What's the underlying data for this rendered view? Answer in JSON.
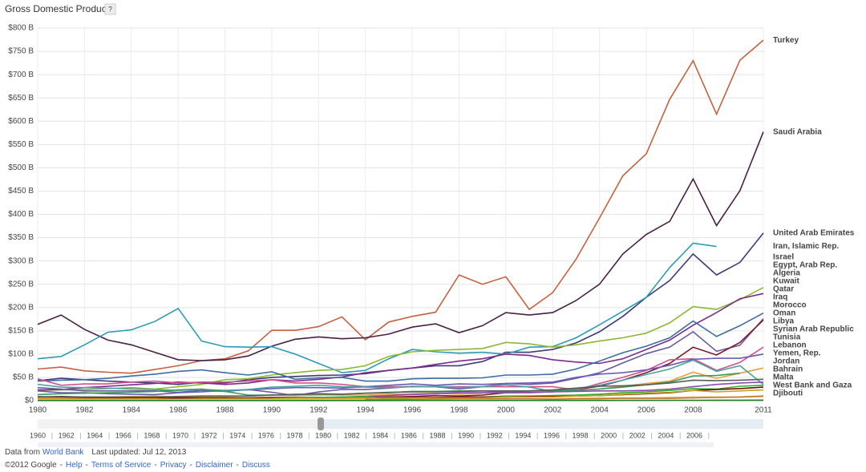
{
  "chart_data": {
    "type": "line",
    "title": "Gross Domestic Product",
    "x": [
      1980,
      1981,
      1982,
      1983,
      1984,
      1985,
      1986,
      1987,
      1988,
      1989,
      1990,
      1991,
      1992,
      1993,
      1994,
      1995,
      1996,
      1997,
      1998,
      1999,
      2000,
      2001,
      2002,
      2003,
      2004,
      2005,
      2006,
      2007,
      2008,
      2009,
      2010,
      2011
    ],
    "xlim": [
      1980,
      2011
    ],
    "xticks": [
      1980,
      1982,
      1984,
      1986,
      1988,
      1990,
      1992,
      1994,
      1996,
      1998,
      2000,
      2002,
      2004,
      2006,
      2008,
      2011
    ],
    "ylim": [
      0,
      800
    ],
    "yticks": [
      {
        "value": 0,
        "label": "$0"
      },
      {
        "value": 50,
        "label": "$50 B"
      },
      {
        "value": 100,
        "label": "$100 B"
      },
      {
        "value": 150,
        "label": "$150 B"
      },
      {
        "value": 200,
        "label": "$200 B"
      },
      {
        "value": 250,
        "label": "$250 B"
      },
      {
        "value": 300,
        "label": "$300 B"
      },
      {
        "value": 350,
        "label": "$350 B"
      },
      {
        "value": 400,
        "label": "$400 B"
      },
      {
        "value": 450,
        "label": "$450 B"
      },
      {
        "value": 500,
        "label": "$500 B"
      },
      {
        "value": 550,
        "label": "$550 B"
      },
      {
        "value": 600,
        "label": "$600 B"
      },
      {
        "value": 650,
        "label": "$650 B"
      },
      {
        "value": 700,
        "label": "$700 B"
      },
      {
        "value": 750,
        "label": "$750 B"
      },
      {
        "value": 800,
        "label": "$800 B"
      }
    ],
    "grid": true,
    "series": [
      {
        "name": "Turkey",
        "color": "#c8603e",
        "values": [
          68,
          72,
          64,
          61,
          59,
          67,
          75,
          86,
          90,
          107,
          151,
          151,
          159,
          180,
          131,
          169,
          181,
          190,
          270,
          250,
          266,
          196,
          232,
          304,
          392,
          483,
          530,
          647,
          730,
          615,
          731,
          774
        ]
      },
      {
        "name": "Saudi Arabia",
        "color": "#4a1f45",
        "values": [
          164,
          184,
          153,
          130,
          120,
          104,
          88,
          86,
          88,
          96,
          117,
          132,
          137,
          133,
          135,
          143,
          158,
          165,
          146,
          161,
          189,
          184,
          189,
          215,
          250,
          315,
          357,
          385,
          476,
          376,
          451,
          577
        ]
      },
      {
        "name": "United Arab Emirates",
        "color": "#3f3a7a",
        "values": [
          43,
          48,
          45,
          42,
          40,
          38,
          35,
          40,
          38,
          45,
          50,
          52,
          54,
          55,
          58,
          65,
          70,
          75,
          75,
          84,
          104,
          104,
          110,
          124,
          148,
          181,
          222,
          258,
          315,
          270,
          297,
          360
        ]
      },
      {
        "name": "Iran, Islamic Rep.",
        "color": "#2b9cb4",
        "values": [
          90,
          95,
          120,
          147,
          152,
          170,
          198,
          128,
          116,
          115,
          116,
          100,
          80,
          60,
          65,
          90,
          110,
          105,
          102,
          104,
          100,
          115,
          116,
          135,
          163,
          192,
          222,
          286,
          338,
          331,
          null,
          null
        ]
      },
      {
        "name": "Israel",
        "color": "#8cb832",
        "values": [
          22,
          23,
          24,
          26,
          28,
          25,
          30,
          35,
          45,
          47,
          55,
          60,
          65,
          67,
          75,
          95,
          105,
          108,
          110,
          112,
          125,
          122,
          115,
          120,
          128,
          135,
          145,
          167,
          202,
          196,
          217,
          243
        ]
      },
      {
        "name": "Egypt, Arab Rep.",
        "color": "#7b2c8c",
        "values": [
          23,
          24,
          28,
          31,
          34,
          37,
          40,
          38,
          35,
          38,
          45,
          42,
          46,
          51,
          60,
          65,
          70,
          78,
          85,
          90,
          100,
          97,
          88,
          83,
          80,
          90,
          110,
          130,
          162,
          189,
          219,
          230
        ]
      },
      {
        "name": "Algeria",
        "color": "#3b6fa3",
        "values": [
          42,
          44,
          45,
          48,
          53,
          57,
          63,
          66,
          60,
          55,
          62,
          46,
          49,
          50,
          42,
          42,
          47,
          48,
          48,
          49,
          55,
          55,
          57,
          68,
          85,
          103,
          117,
          135,
          171,
          138,
          161,
          188
        ]
      },
      {
        "name": "Kuwait",
        "color": "#6a5aa2",
        "values": [
          28,
          25,
          21,
          21,
          21,
          21,
          18,
          22,
          20,
          24,
          18,
          11,
          19,
          24,
          24,
          27,
          31,
          30,
          25,
          30,
          37,
          35,
          38,
          48,
          60,
          81,
          101,
          115,
          148,
          106,
          119,
          176
        ]
      },
      {
        "name": "Qatar",
        "color": "#7b1b30",
        "values": [
          8,
          9,
          8,
          7,
          7,
          6,
          5,
          5,
          6,
          6,
          7,
          7,
          7,
          7,
          7,
          8,
          9,
          11,
          10,
          12,
          17,
          18,
          19,
          24,
          31,
          44,
          60,
          80,
          115,
          98,
          125,
          173
        ]
      },
      {
        "name": "Iraq",
        "color": "#d4508c",
        "values": [
          47,
          33,
          36,
          36,
          40,
          42,
          38,
          40,
          40,
          42,
          45,
          38,
          38,
          35,
          30,
          30,
          30,
          30,
          30,
          30,
          30,
          30,
          30,
          23,
          37,
          50,
          65,
          88,
          90,
          65,
          82,
          115
        ]
      },
      {
        "name": "Morocco",
        "color": "#6a5ab4",
        "values": [
          21,
          17,
          17,
          15,
          14,
          13,
          17,
          19,
          22,
          23,
          26,
          28,
          28,
          27,
          30,
          33,
          36,
          33,
          36,
          35,
          37,
          38,
          40,
          50,
          57,
          60,
          66,
          76,
          89,
          91,
          91,
          100
        ]
      },
      {
        "name": "Oman",
        "color": "#e8a040",
        "values": [
          6,
          7,
          8,
          8,
          9,
          10,
          8,
          8,
          9,
          10,
          12,
          11,
          12,
          12,
          12,
          14,
          15,
          16,
          14,
          16,
          20,
          20,
          20,
          22,
          25,
          31,
          37,
          42,
          61,
          48,
          59,
          70
        ]
      },
      {
        "name": "Libya",
        "color": "#4aa3a3",
        "values": [
          35,
          29,
          28,
          27,
          25,
          24,
          22,
          24,
          22,
          24,
          29,
          31,
          33,
          30,
          29,
          28,
          30,
          31,
          28,
          30,
          34,
          29,
          20,
          26,
          33,
          44,
          56,
          68,
          87,
          63,
          75,
          35
        ]
      },
      {
        "name": "Syrian Arab Republic",
        "color": "#3a9a5a",
        "values": [
          13,
          15,
          16,
          17,
          18,
          20,
          23,
          25,
          20,
          12,
          12,
          14,
          14,
          14,
          16,
          17,
          20,
          20,
          21,
          21,
          19,
          21,
          22,
          22,
          25,
          29,
          34,
          40,
          53,
          54,
          59,
          null
        ]
      },
      {
        "name": "Tunisia",
        "color": "#5a5a5a",
        "values": [
          9,
          8,
          8,
          8,
          8,
          8,
          9,
          10,
          10,
          10,
          12,
          13,
          15,
          14,
          16,
          18,
          19,
          19,
          20,
          21,
          21,
          21,
          23,
          27,
          31,
          32,
          34,
          38,
          44,
          43,
          44,
          46
        ]
      },
      {
        "name": "Lebanon",
        "color": "#8a4ab4",
        "values": [
          4,
          4,
          4,
          4,
          4,
          4,
          4,
          3,
          3,
          3,
          3,
          4,
          6,
          8,
          9,
          11,
          13,
          15,
          17,
          17,
          17,
          17,
          19,
          20,
          21,
          21,
          22,
          25,
          30,
          35,
          38,
          40
        ]
      },
      {
        "name": "Yemen, Rep.",
        "color": "#30b030",
        "values": [
          null,
          null,
          null,
          null,
          null,
          null,
          null,
          null,
          null,
          null,
          5,
          6,
          7,
          8,
          9,
          4,
          6,
          7,
          6,
          8,
          10,
          10,
          11,
          12,
          14,
          17,
          19,
          22,
          26,
          25,
          31,
          33
        ]
      },
      {
        "name": "Jordan",
        "color": "#6a1010",
        "values": [
          4,
          4,
          5,
          5,
          5,
          5,
          6,
          6,
          6,
          4,
          4,
          4,
          5,
          5,
          6,
          7,
          7,
          7,
          8,
          8,
          8,
          9,
          9,
          10,
          11,
          13,
          15,
          17,
          22,
          24,
          26,
          29
        ]
      },
      {
        "name": "Bahrain",
        "color": "#c8a020",
        "values": [
          4,
          4,
          4,
          4,
          4,
          4,
          3,
          4,
          4,
          4,
          4,
          5,
          5,
          5,
          6,
          6,
          6,
          6,
          6,
          6,
          8,
          8,
          8,
          10,
          11,
          14,
          16,
          18,
          22,
          19,
          21,
          23
        ]
      },
      {
        "name": "Malta",
        "color": "#e0c050",
        "values": [
          1,
          1,
          1,
          1,
          1,
          1,
          2,
          2,
          2,
          2,
          2,
          3,
          3,
          3,
          3,
          3,
          3,
          3,
          4,
          4,
          4,
          4,
          4,
          5,
          6,
          6,
          6,
          7,
          8,
          8,
          8,
          9
        ]
      },
      {
        "name": "West Bank and Gaza",
        "color": "#c07830",
        "values": [
          null,
          null,
          null,
          null,
          null,
          null,
          null,
          null,
          null,
          null,
          null,
          null,
          null,
          null,
          3,
          3,
          3,
          4,
          4,
          4,
          4,
          4,
          3,
          4,
          4,
          5,
          5,
          5,
          6,
          7,
          8,
          10
        ]
      },
      {
        "name": "Djibouti",
        "color": "#208020",
        "values": [
          0.3,
          0.3,
          0.3,
          0.3,
          0.3,
          0.3,
          0.3,
          0.3,
          0.4,
          0.4,
          0.4,
          0.4,
          0.4,
          0.4,
          0.4,
          0.4,
          0.5,
          0.5,
          0.5,
          0.5,
          0.5,
          0.5,
          0.5,
          0.5,
          0.6,
          0.7,
          0.7,
          0.8,
          0.9,
          1,
          1.1,
          1.2
        ]
      }
    ]
  },
  "info_button": "?",
  "timeline": [
    1960,
    1962,
    1964,
    1966,
    1968,
    1970,
    1972,
    1974,
    1976,
    1978,
    1980,
    1982,
    1984,
    1986,
    1988,
    1990,
    1992,
    1994,
    1996,
    1998,
    2000,
    2002,
    2004,
    2006
  ],
  "footer": {
    "source_prefix": "Data from",
    "source_link": "World Bank",
    "updated": "Last updated: Jul 12, 2013",
    "copyright": "©2012 Google",
    "separator": "-",
    "links": [
      "Help",
      "Terms of Service",
      "Privacy",
      "Disclaimer",
      "Discuss"
    ]
  }
}
